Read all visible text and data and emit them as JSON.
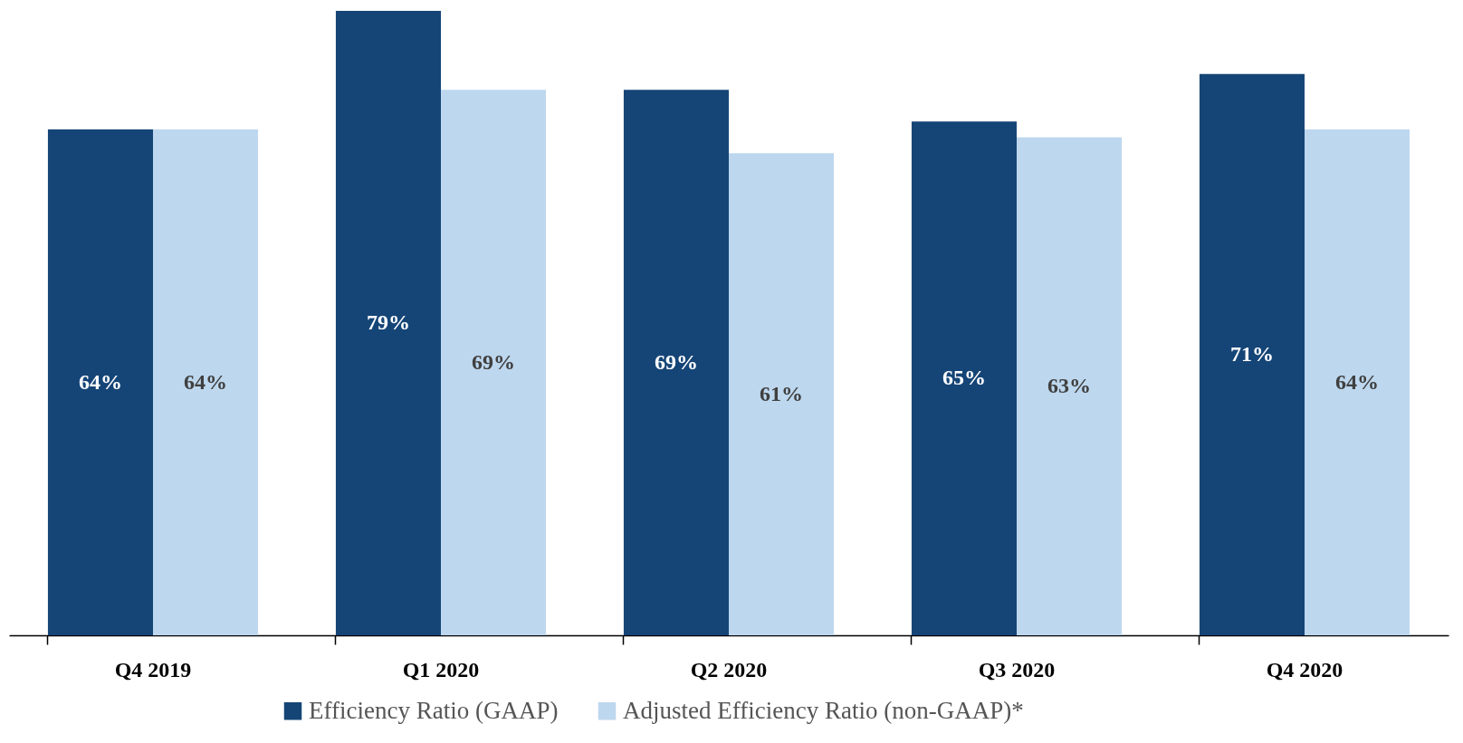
{
  "chart_data": {
    "type": "bar",
    "categories": [
      "Q4 2019",
      "Q1 2020",
      "Q2 2020",
      "Q3 2020",
      "Q4 2020"
    ],
    "series": [
      {
        "name": "Efficiency Ratio (GAAP)",
        "color": "#154577",
        "values": [
          64,
          79,
          69,
          65,
          71
        ],
        "value_labels": [
          "64%",
          "79%",
          "69%",
          "65%",
          "71%"
        ]
      },
      {
        "name": "Adjusted Efficiency Ratio (non-GAAP)*",
        "color": "#bdd7ee",
        "values": [
          64,
          69,
          61,
          63,
          64
        ],
        "value_labels": [
          "64%",
          "69%",
          "61%",
          "63%",
          "64%"
        ]
      }
    ],
    "legend": "bottom",
    "grid": false
  }
}
